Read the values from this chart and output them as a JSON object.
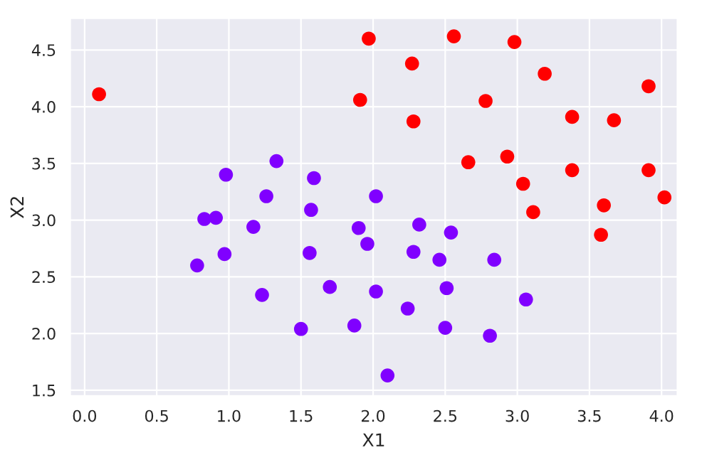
{
  "chart_data": {
    "type": "scatter",
    "xlabel": "X1",
    "ylabel": "X2",
    "xlim": [
      -0.1,
      4.11
    ],
    "ylim": [
      1.45,
      4.78
    ],
    "xticks": [
      {
        "value": 0,
        "label": "0.0"
      },
      {
        "value": 0.5,
        "label": "0.5"
      },
      {
        "value": 1,
        "label": "1.0"
      },
      {
        "value": 1.5,
        "label": "1.5"
      },
      {
        "value": 2,
        "label": "2.0"
      },
      {
        "value": 2.5,
        "label": "2.5"
      },
      {
        "value": 3,
        "label": "3.0"
      },
      {
        "value": 3.5,
        "label": "3.5"
      },
      {
        "value": 4,
        "label": "4.0"
      }
    ],
    "yticks": [
      {
        "value": 1.5,
        "label": "1.5"
      },
      {
        "value": 2,
        "label": "2.0"
      },
      {
        "value": 2.5,
        "label": "2.5"
      },
      {
        "value": 3,
        "label": "3.0"
      },
      {
        "value": 3.5,
        "label": "3.5"
      },
      {
        "value": 4,
        "label": "4.0"
      },
      {
        "value": 4.5,
        "label": "4.5"
      }
    ],
    "grid": true,
    "marker": "circle",
    "series": [
      {
        "color": "#8000ff",
        "x": [
          1.26,
          2.02,
          0.83,
          0.91,
          1.57,
          1.17,
          1.9,
          1.96,
          0.97,
          1.56,
          0.78,
          1.7,
          1.23,
          2.02,
          1.5,
          1.87,
          2.1,
          1.33,
          0.98,
          1.59,
          2.32,
          2.54,
          2.28,
          2.46,
          2.84,
          2.51,
          2.24,
          3.06,
          2.5,
          2.81
        ],
        "values": [
          3.21,
          3.21,
          3.01,
          3.02,
          3.09,
          2.94,
          2.93,
          2.79,
          2.7,
          2.71,
          2.6,
          2.41,
          2.34,
          2.37,
          2.04,
          2.07,
          1.63,
          3.52,
          3.4,
          3.37,
          2.96,
          2.89,
          2.72,
          2.65,
          2.65,
          2.4,
          2.22,
          2.3,
          2.05,
          1.98
        ]
      },
      {
        "color": "#ff0000",
        "x": [
          0.1,
          1.97,
          1.91,
          2.27,
          2.28,
          2.56,
          2.78,
          2.98,
          3.19,
          2.66,
          2.93,
          3.04,
          3.11,
          3.38,
          3.38,
          3.67,
          3.91,
          3.91,
          3.6,
          3.58,
          4.02
        ],
        "values": [
          4.11,
          4.6,
          4.06,
          4.38,
          3.87,
          4.62,
          4.05,
          4.57,
          4.29,
          3.51,
          3.56,
          3.32,
          3.07,
          3.91,
          3.44,
          3.88,
          4.18,
          3.44,
          3.13,
          2.87,
          3.2
        ]
      }
    ]
  }
}
